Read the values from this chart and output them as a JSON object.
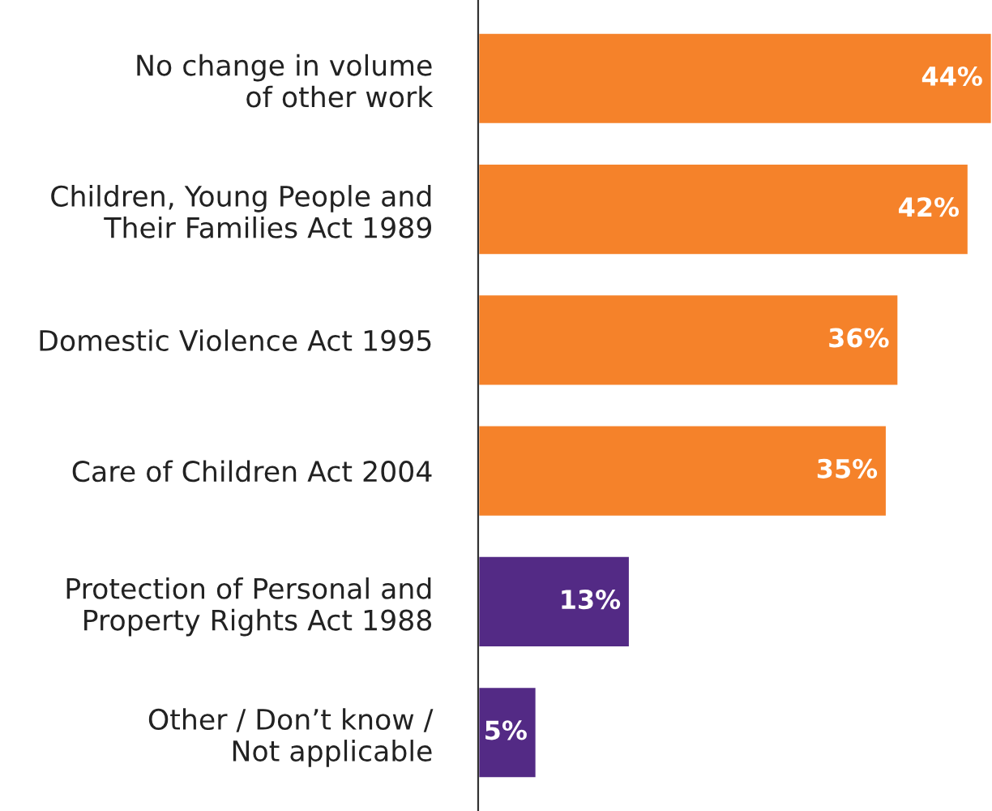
{
  "chart_data": {
    "type": "bar",
    "orientation": "horizontal",
    "categories": [
      "No change in volume\nof other work",
      "Children, Young People and\nTheir Families Act 1989",
      "Domestic Violence Act 1995",
      "Care of Children Act 2004",
      "Protection of Personal and\nProperty Rights Act 1988",
      "Other / Don’t know /\nNot applicable"
    ],
    "values": [
      44,
      42,
      36,
      35,
      13,
      5
    ],
    "value_labels": [
      "44%",
      "42%",
      "36%",
      "35%",
      "13%",
      "5%"
    ],
    "colors": [
      "#f5822a",
      "#f5822a",
      "#f5822a",
      "#f5822a",
      "#532a85",
      "#532a85"
    ],
    "xlim": [
      0,
      44
    ],
    "grid": false,
    "legend": false
  }
}
